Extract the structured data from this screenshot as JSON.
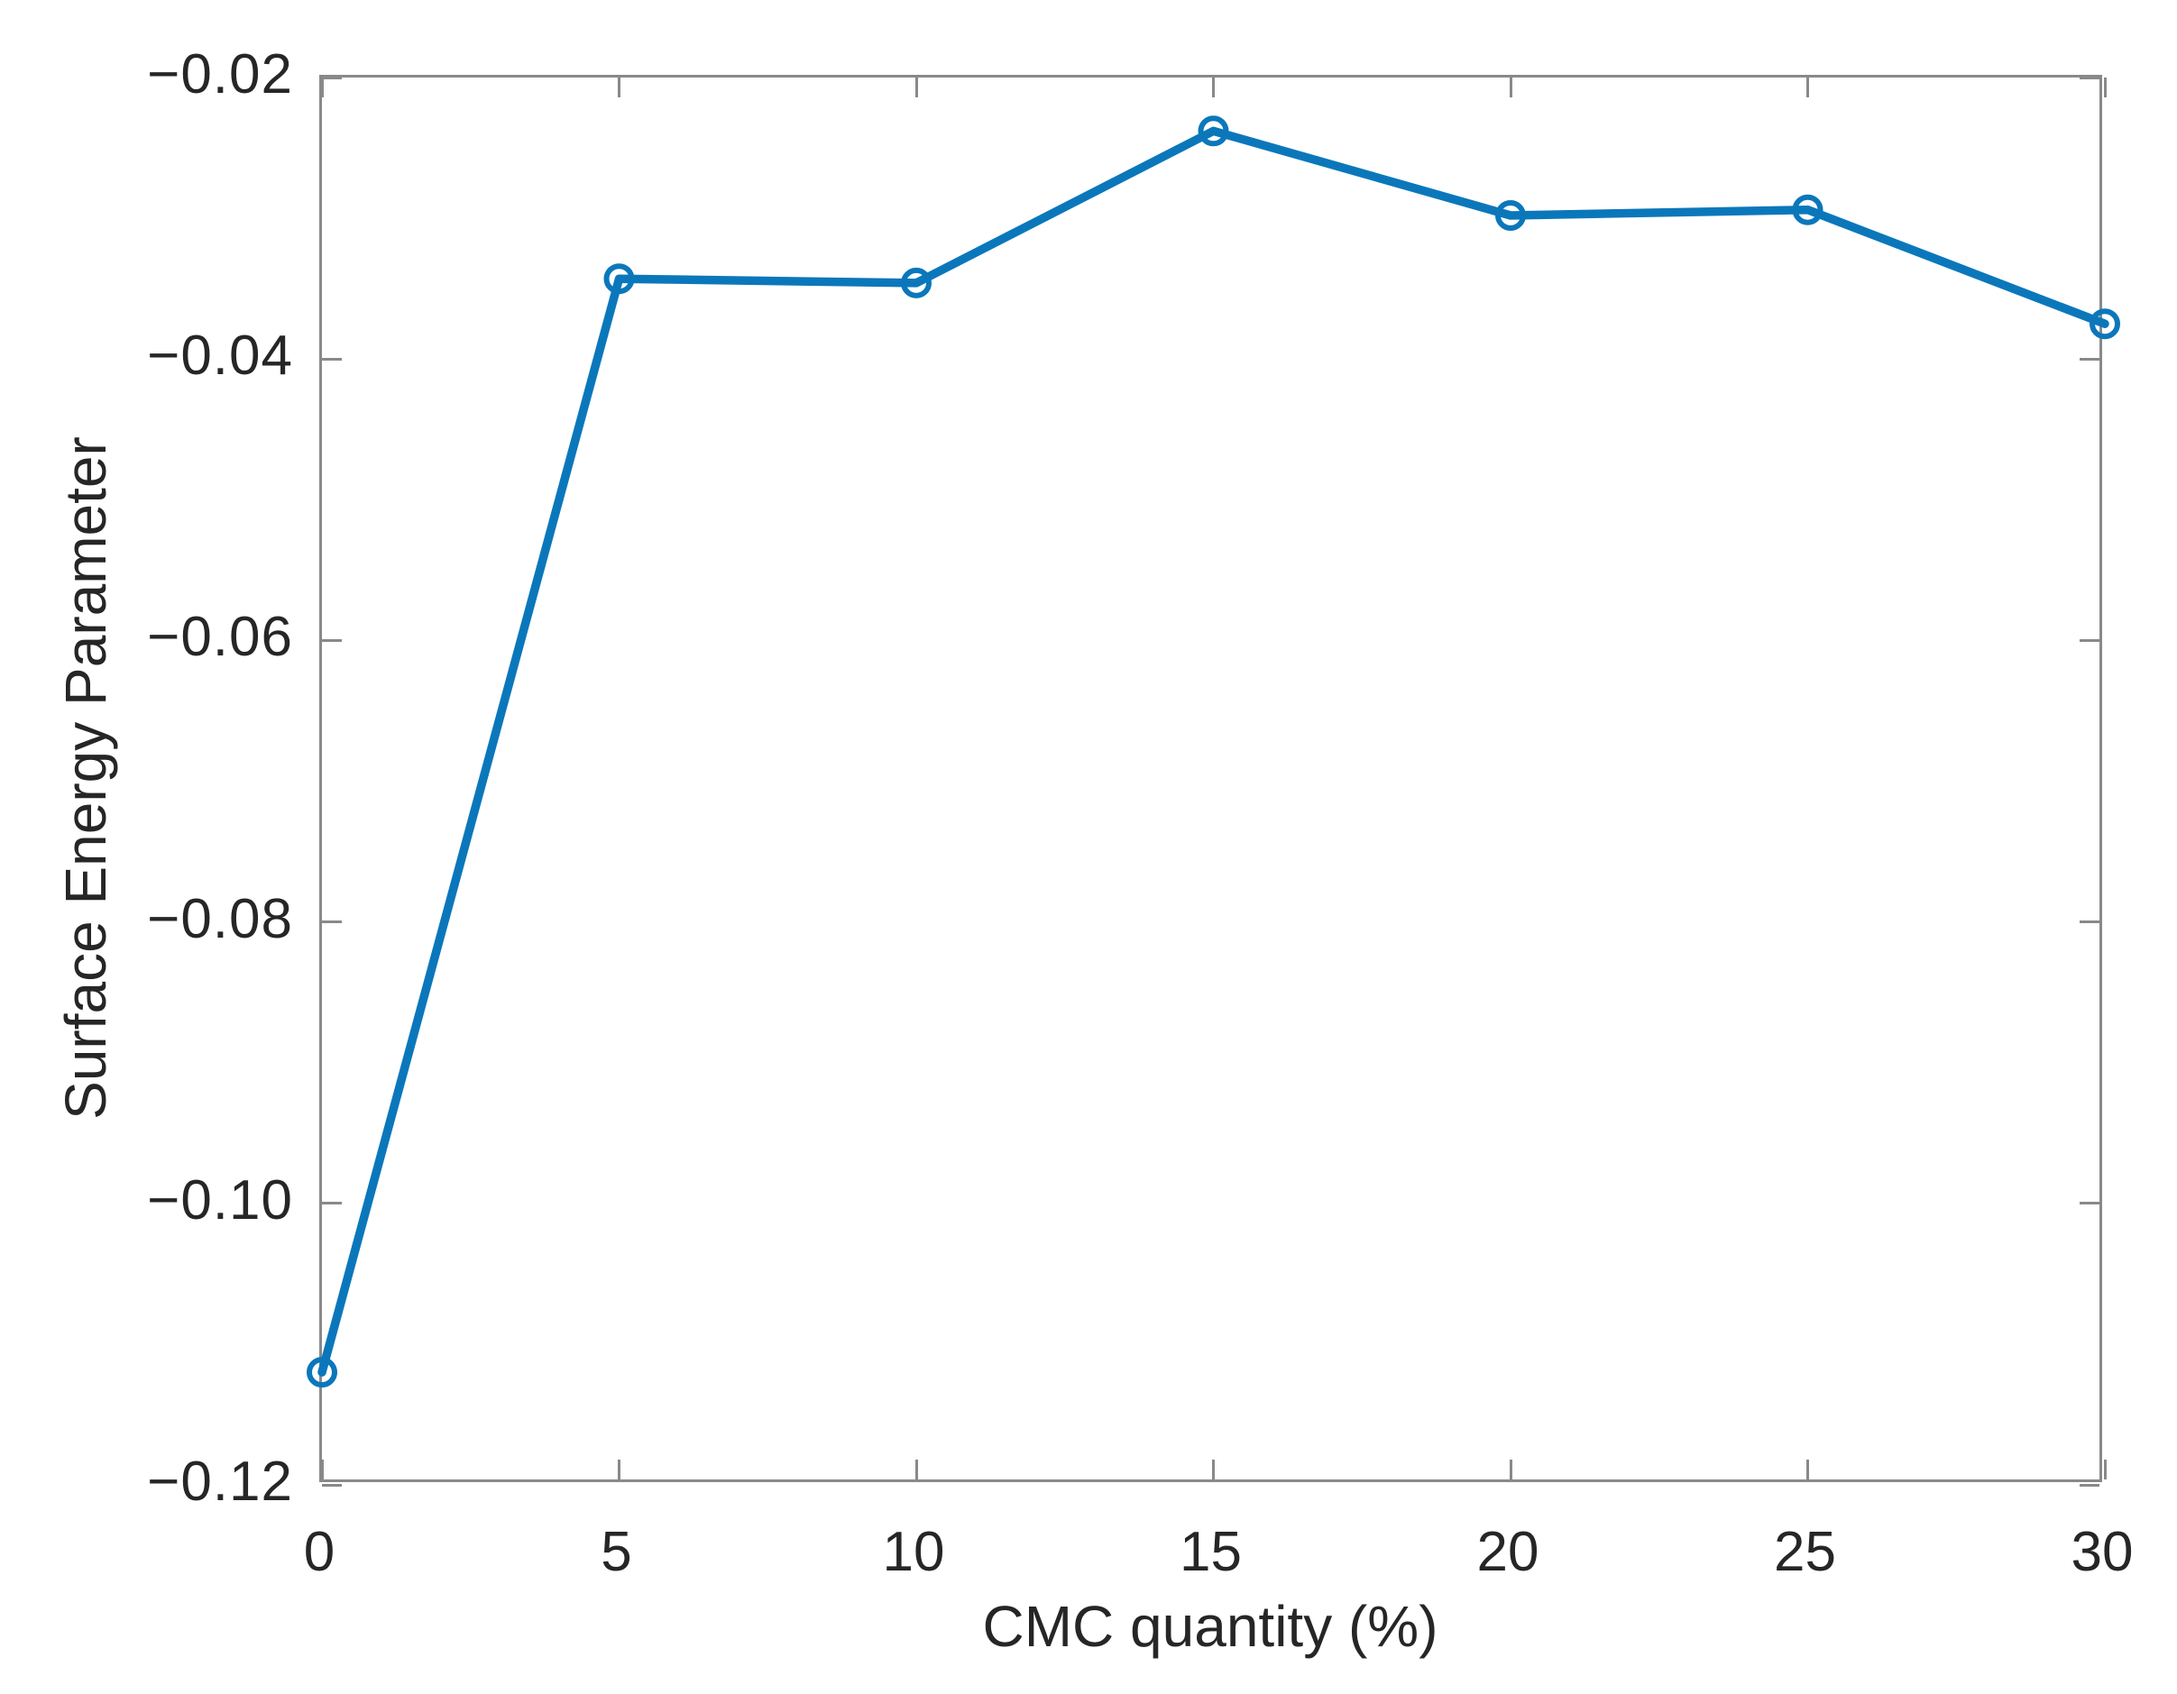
{
  "chart_data": {
    "type": "line",
    "title": "",
    "xlabel": "CMC quantity (%)",
    "ylabel": "Surface Energy Parameter",
    "x": [
      0,
      5,
      10,
      15,
      20,
      25,
      30
    ],
    "series": [
      {
        "name": "Surface Energy Parameter",
        "values": [
          -0.112,
          -0.0343,
          -0.0346,
          -0.0238,
          -0.0298,
          -0.0294,
          -0.0375
        ]
      }
    ],
    "xlim": [
      0,
      30
    ],
    "ylim": [
      -0.12,
      -0.02
    ],
    "xticks": {
      "values": [
        0,
        5,
        10,
        15,
        20,
        25,
        30
      ],
      "labels": [
        "0",
        "5",
        "10",
        "15",
        "20",
        "25",
        "30"
      ]
    },
    "yticks": {
      "values": [
        -0.12,
        -0.1,
        -0.08,
        -0.06,
        -0.04,
        -0.02
      ],
      "labels": [
        "−0.12",
        "−0.10",
        "−0.08",
        "−0.06",
        "−0.04",
        "−0.02"
      ]
    },
    "grid": false,
    "legend": null,
    "marker": "circle-open",
    "line_color": "#0b77bb",
    "axis_color": "#898989",
    "text_color": "#262626",
    "background_color": "#ffffff"
  }
}
